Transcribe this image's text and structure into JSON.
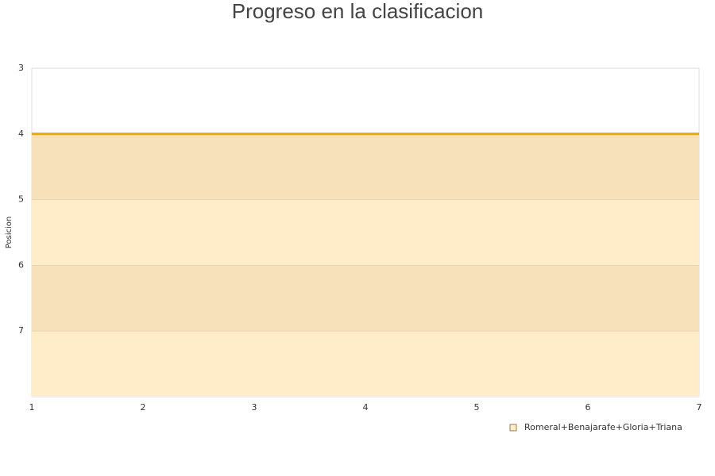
{
  "chart_data": {
    "type": "area",
    "title": "Progreso en la clasificacion",
    "y_label": "Posicion",
    "x": [
      1,
      2,
      3,
      4,
      5,
      6,
      7
    ],
    "series": [
      {
        "name": "Romeral+Benajarafe+Gloria+Triana",
        "color": "#f0a30a",
        "fill": "#ffecc9",
        "values": [
          4,
          4,
          4,
          4,
          4,
          4,
          4
        ]
      }
    ],
    "xlim": [
      1,
      7
    ],
    "xticks": [
      1,
      2,
      3,
      4,
      5,
      6,
      7
    ],
    "ylim": [
      3,
      8
    ],
    "yticks": [
      3,
      4,
      5,
      6,
      7
    ],
    "y_inverted": true,
    "grid_bands": true,
    "legend": "bottom-right"
  }
}
